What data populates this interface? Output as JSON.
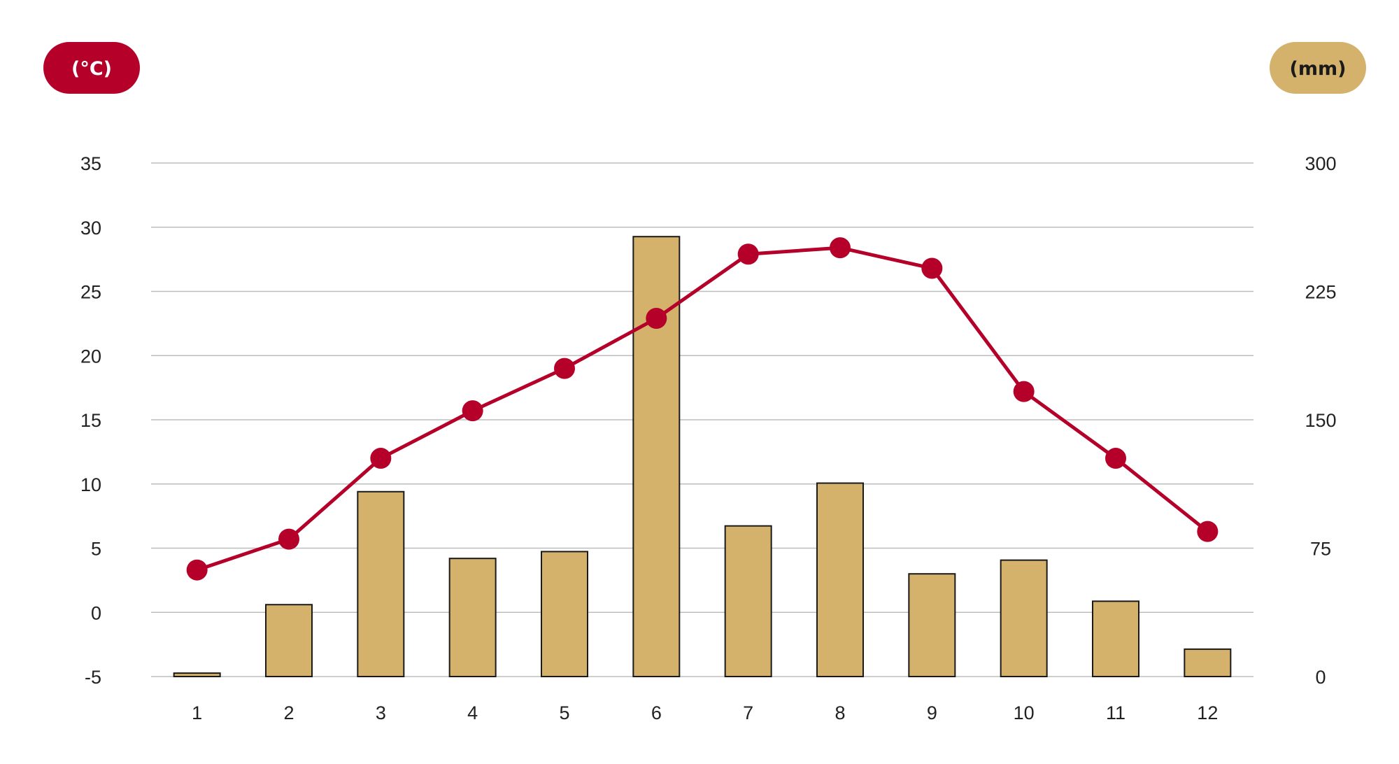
{
  "chart_data": {
    "type": "bar",
    "categories": [
      "1",
      "2",
      "3",
      "4",
      "5",
      "6",
      "7",
      "8",
      "9",
      "10",
      "11",
      "12"
    ],
    "series": [
      {
        "type": "line",
        "axis": "left",
        "values": [
          3.3,
          5.7,
          12.0,
          15.7,
          19.0,
          22.9,
          27.9,
          28.4,
          26.8,
          17.2,
          12.0,
          6.3
        ]
      },
      {
        "type": "bar",
        "axis": "right",
        "values": [
          2,
          42,
          108,
          69,
          73,
          257,
          88,
          113,
          60,
          68,
          44,
          16
        ]
      }
    ],
    "left_axis": {
      "unit_label": "(°C)",
      "ylim": [
        -5,
        35
      ],
      "ticks": [
        "-5",
        "0",
        "5",
        "10",
        "15",
        "20",
        "25",
        "30",
        "35"
      ]
    },
    "right_axis": {
      "unit_label": "(mm)",
      "ylim": [
        0,
        300
      ],
      "ticks": [
        "0",
        "75",
        "150",
        "225",
        "300"
      ]
    },
    "grid": true,
    "colors": {
      "line": "#b5002a",
      "bar_fill": "#d4b26c",
      "bar_stroke": "#1a1a1a",
      "grid": "#bdbdbd",
      "left_pill": "#b5002a",
      "left_pill_text": "#ffffff",
      "right_pill": "#d4b26c",
      "right_pill_text": "#1a1a1a"
    }
  }
}
